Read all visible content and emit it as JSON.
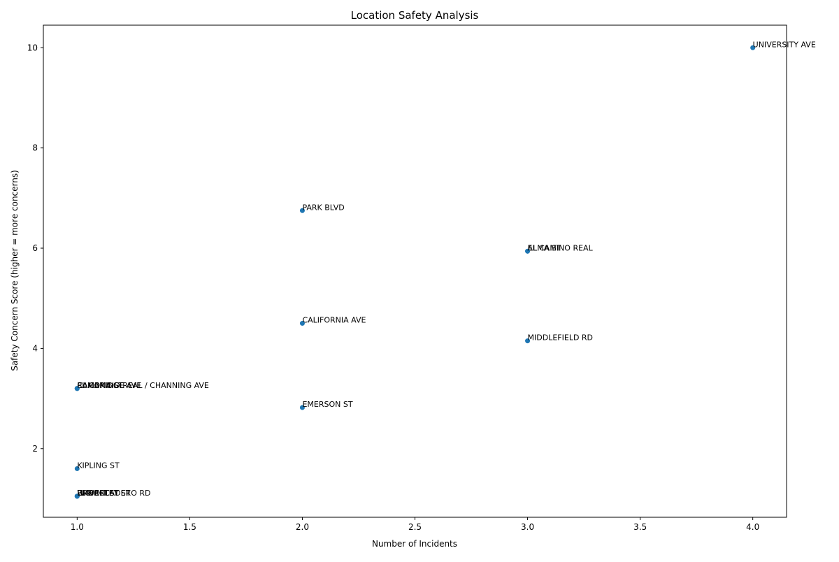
{
  "chart_data": {
    "type": "scatter",
    "title": "Location Safety Analysis",
    "xlabel": "Number of Incidents",
    "ylabel": "Safety Concern Score (higher = more concerns)",
    "xlim": [
      0.85,
      4.15
    ],
    "ylim": [
      0.63,
      10.45
    ],
    "xticks": [
      1.0,
      1.5,
      2.0,
      2.5,
      3.0,
      3.5,
      4.0
    ],
    "xtick_labels": [
      "1.0",
      "1.5",
      "2.0",
      "2.5",
      "3.0",
      "3.5",
      "4.0"
    ],
    "yticks": [
      2,
      4,
      6,
      8,
      10
    ],
    "ytick_labels": [
      "2",
      "4",
      "6",
      "8",
      "10"
    ],
    "grid": false,
    "marker_color": "#1f77b4",
    "points": [
      {
        "label": "UNIVERSITY AVE",
        "x": 4,
        "y": 10.0
      },
      {
        "label": "PARK BLVD",
        "x": 2,
        "y": 6.75
      },
      {
        "label": "EL CAMINO REAL",
        "x": 3,
        "y": 5.94
      },
      {
        "label": "ALMA ST",
        "x": 3,
        "y": 5.94
      },
      {
        "label": "CALIFORNIA AVE",
        "x": 2,
        "y": 4.5
      },
      {
        "label": "MIDDLEFIELD RD",
        "x": 3,
        "y": 4.15
      },
      {
        "label": "EL CAMINO REAL / CHANNING AVE",
        "x": 1,
        "y": 3.2
      },
      {
        "label": "CAMBRIDGE AVE",
        "x": 1,
        "y": 3.2
      },
      {
        "label": "RAMONA ST",
        "x": 1,
        "y": 3.2
      },
      {
        "label": "EMERSON ST",
        "x": 2,
        "y": 2.82
      },
      {
        "label": "KIPLING ST",
        "x": 1,
        "y": 1.6
      },
      {
        "label": "EMBARCADERO RD",
        "x": 1,
        "y": 1.05
      },
      {
        "label": "HIGH ST",
        "x": 1,
        "y": 1.05
      },
      {
        "label": "WAVERLEY ST",
        "x": 1,
        "y": 1.05
      },
      {
        "label": "BRYANT ST",
        "x": 1,
        "y": 1.05
      }
    ]
  }
}
